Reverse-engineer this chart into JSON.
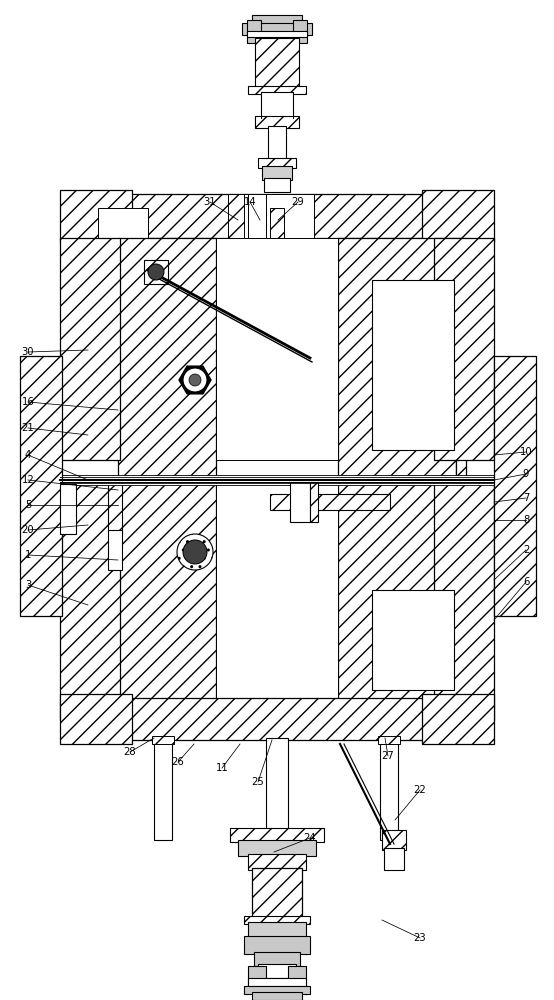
{
  "background": "#ffffff",
  "figsize": [
    5.54,
    10.0
  ],
  "dpi": 100
}
